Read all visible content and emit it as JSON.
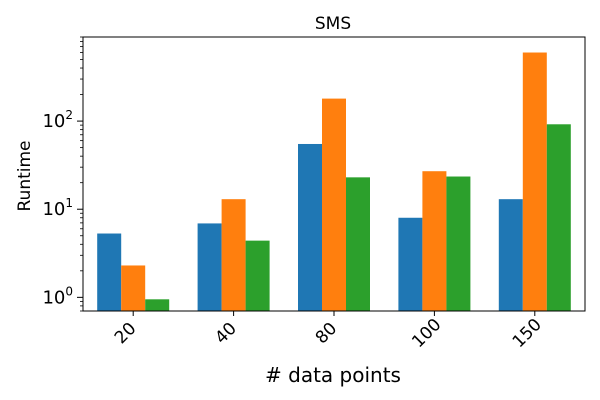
{
  "chart_data": {
    "type": "bar",
    "title": "SMS",
    "xlabel": "# data points",
    "ylabel": "Runtime",
    "yscale": "log",
    "ylim": [
      0.7,
      900
    ],
    "categories": [
      "20",
      "40",
      "80",
      "100",
      "150"
    ],
    "series": [
      {
        "color": "#1f77b4",
        "values": [
          5.3,
          6.9,
          55,
          8.0,
          13
        ]
      },
      {
        "color": "#ff7f0e",
        "values": [
          2.3,
          13,
          180,
          27,
          600
        ]
      },
      {
        "color": "#2ca02c",
        "values": [
          0.95,
          4.4,
          23,
          23.5,
          92
        ]
      }
    ],
    "y_ticks": [
      {
        "base": "10",
        "exp": "0",
        "value": 1
      },
      {
        "base": "10",
        "exp": "1",
        "value": 10
      },
      {
        "base": "10",
        "exp": "2",
        "value": 100
      }
    ],
    "grid": false,
    "legend": "none"
  }
}
